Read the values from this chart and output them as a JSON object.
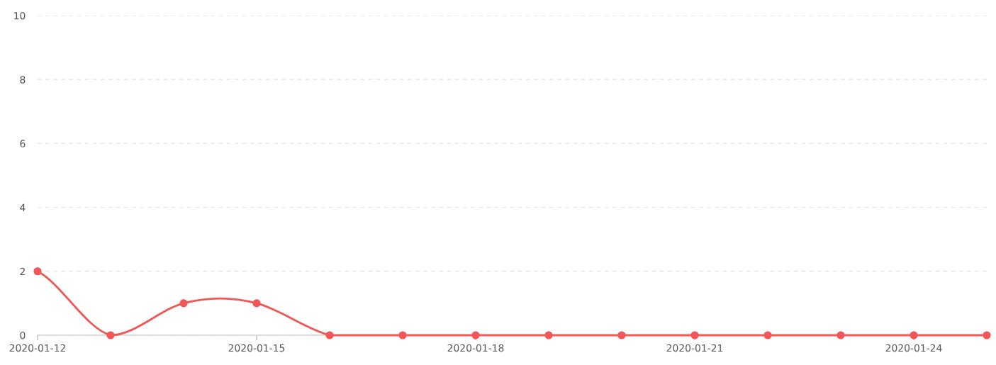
{
  "chart_data": {
    "type": "line",
    "x": [
      "2020-01-12",
      "2020-01-13",
      "2020-01-14",
      "2020-01-15",
      "2020-01-16",
      "2020-01-17",
      "2020-01-18",
      "2020-01-19",
      "2020-01-20",
      "2020-01-21",
      "2020-01-22",
      "2020-01-23",
      "2020-01-24",
      "2020-01-25"
    ],
    "series": [
      {
        "color": "#f25757",
        "values": [
          2,
          0,
          1,
          1,
          0,
          0,
          0,
          0,
          0,
          0,
          0,
          0,
          0,
          0
        ]
      }
    ],
    "xlim": [
      "2020-01-12",
      "2020-01-25"
    ],
    "xticks": [
      {
        "value": "2020-01-12",
        "label": "2020-01-12"
      },
      {
        "value": "2020-01-15",
        "label": "2020-01-15"
      },
      {
        "value": "2020-01-18",
        "label": "2020-01-18"
      },
      {
        "value": "2020-01-21",
        "label": "2020-01-21"
      },
      {
        "value": "2020-01-24",
        "label": "2020-01-24"
      }
    ],
    "ylim": [
      0,
      10
    ],
    "yticks": [
      0,
      2,
      4,
      6,
      8,
      10
    ],
    "grid": "y",
    "marker": "circle",
    "line_style": "solid"
  }
}
